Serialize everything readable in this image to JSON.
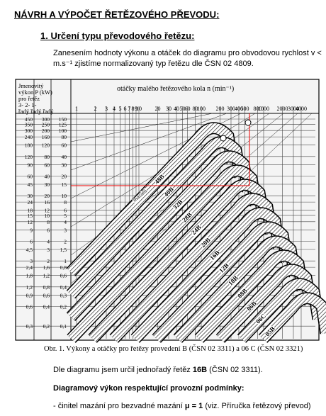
{
  "header": {
    "title": "NÁVRH A VÝPOČET ŘETĚZOVÉHO PŘEVODU:"
  },
  "section": {
    "heading": "1. Určení typu převodového řetězu:",
    "intro": [
      "Zanesením hodnoty výkonu a otáček do diagramu pro obvodovou rychlost v <",
      "m.s⁻¹ zjistíme normalizovaný typ řetězu dle ČSN 02  4809."
    ]
  },
  "figure": {
    "power_header": [
      "Jmenovitý",
      "výkon P (kW)",
      "pro řetěz",
      "3-   2-   1-",
      "řadý řadý řadý"
    ],
    "power_col_3": [
      "450",
      "350",
      "300",
      "240",
      "180",
      "120",
      "90",
      "60",
      "45",
      "30",
      "24",
      "18",
      "15",
      "12",
      "9",
      "6",
      "4,5",
      "3",
      "2,4",
      "1,8",
      "1,2",
      "0,9",
      "0,6",
      "0,3"
    ],
    "power_col_2": [
      "300",
      "250",
      "200",
      "160",
      "120",
      "80",
      "60",
      "40",
      "30",
      "20",
      "16",
      "12",
      "10",
      "8",
      "6",
      "4",
      "3",
      "2",
      "1,6",
      "1,2",
      "0,8",
      "0,6",
      "0,4",
      "0,2"
    ],
    "power_col_1": [
      "150",
      "125",
      "100",
      "80",
      "60",
      "40",
      "30",
      "20",
      "15",
      "10",
      "8",
      "6",
      "5",
      "4",
      "3",
      "2",
      "1,5",
      "1",
      "0,8",
      "0,6",
      "0,4",
      "0,3",
      "0,2",
      "0,1"
    ],
    "speed_title": "otáčky malého řetězového kola n (min⁻¹)",
    "speed_ticks": [
      "1",
      "2",
      "3",
      "4",
      "5",
      "6",
      "7",
      "8",
      "9",
      "10",
      "20",
      "30",
      "40",
      "50",
      "60",
      "80",
      "100",
      "200",
      "300",
      "400",
      "500",
      "800",
      "1000",
      "2000",
      "3000",
      "4000"
    ],
    "chains": [
      "48B",
      "40B",
      "32B",
      "28B",
      "24B",
      "20B",
      "16B",
      "12B",
      "10B",
      "08B",
      "06B",
      "06C",
      "05B"
    ],
    "lubrication": "mazání",
    "caption": "Obr. 1. Výkony a otáčky pro řetězy provedení B (ČSN 02 3311) a 06 C (ČSN 02 3321)"
  },
  "conclusion": {
    "parts": [
      "Dle diagramu jsem určil jednořadý řetěz ",
      "16B",
      " (ČSN 02 3311)."
    ]
  },
  "conditions": {
    "heading": "Diagramový výkon respektující provozní podmínky:",
    "items": [
      [
        "- činitel mazání pro bezvadné mazání ",
        "μ = 1",
        " (viz. Příručka řetězový převod)"
      ]
    ]
  }
}
